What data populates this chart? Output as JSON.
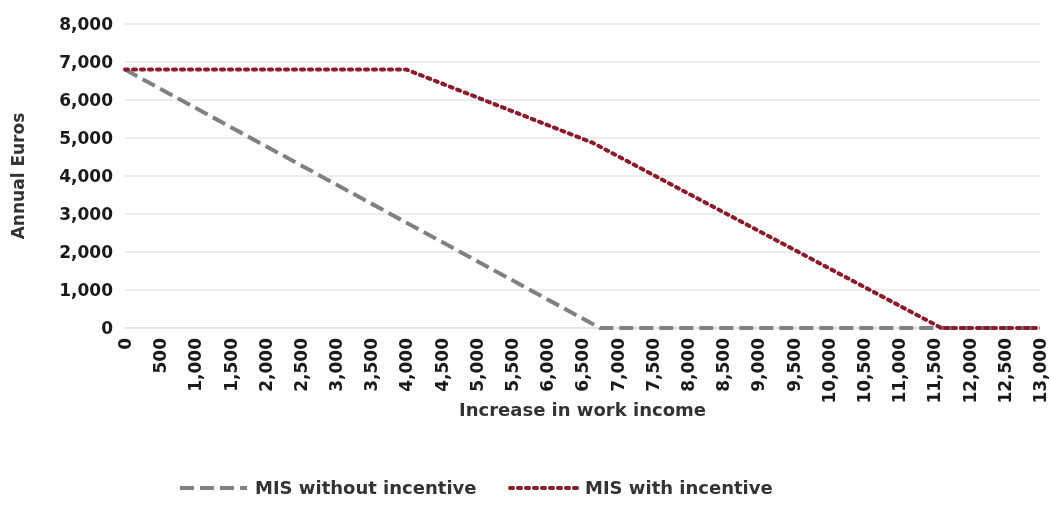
{
  "chart_data": {
    "type": "line",
    "xlabel": "Increase in work income",
    "ylabel": "Annual Euros",
    "xlim": [
      0,
      13000
    ],
    "xticks": [
      {
        "value": 0,
        "label": "0"
      },
      {
        "value": 500,
        "label": "500"
      },
      {
        "value": 1000,
        "label": "1,000"
      },
      {
        "value": 1500,
        "label": "1,500"
      },
      {
        "value": 2000,
        "label": "2,000"
      },
      {
        "value": 2500,
        "label": "2,500"
      },
      {
        "value": 3000,
        "label": "3,000"
      },
      {
        "value": 3500,
        "label": "3,500"
      },
      {
        "value": 4000,
        "label": "4,000"
      },
      {
        "value": 4500,
        "label": "4,500"
      },
      {
        "value": 5000,
        "label": "5,000"
      },
      {
        "value": 5500,
        "label": "5,500"
      },
      {
        "value": 6000,
        "label": "6,000"
      },
      {
        "value": 6500,
        "label": "6,500"
      },
      {
        "value": 7000,
        "label": "7,000"
      },
      {
        "value": 7500,
        "label": "7,500"
      },
      {
        "value": 8000,
        "label": "8,000"
      },
      {
        "value": 8500,
        "label": "8,500"
      },
      {
        "value": 9000,
        "label": "9,000"
      },
      {
        "value": 9500,
        "label": "9,500"
      },
      {
        "value": 10000,
        "label": "10,000"
      },
      {
        "value": 10500,
        "label": "10,500"
      },
      {
        "value": 11000,
        "label": "11,000"
      },
      {
        "value": 11500,
        "label": "11,500"
      },
      {
        "value": 12000,
        "label": "12,000"
      },
      {
        "value": 12500,
        "label": "12,500"
      },
      {
        "value": 13000,
        "label": "13,000"
      }
    ],
    "ylim": [
      0,
      8000
    ],
    "yticks": [
      {
        "value": 0,
        "label": "0"
      },
      {
        "value": 1000,
        "label": "1,000"
      },
      {
        "value": 2000,
        "label": "2,000"
      },
      {
        "value": 3000,
        "label": "3,000"
      },
      {
        "value": 4000,
        "label": "4,000"
      },
      {
        "value": 5000,
        "label": "5,000"
      },
      {
        "value": 6000,
        "label": "6,000"
      },
      {
        "value": 7000,
        "label": "7,000"
      },
      {
        "value": 8000,
        "label": "8,000"
      }
    ],
    "grid": "y",
    "legend": "bottom",
    "marker": "none",
    "series": [
      {
        "name": "MIS without incentive",
        "color": "#808080",
        "line_style": "dashed",
        "x": [
          0,
          6750,
          13000
        ],
        "values": [
          6800,
          0,
          0
        ]
      },
      {
        "name": "MIS with incentive",
        "color": "#8b1a2b",
        "line_style": "dotted",
        "x": [
          0,
          4000,
          6650,
          11600,
          13000
        ],
        "values": [
          6800,
          6800,
          4870,
          0,
          0
        ]
      }
    ]
  }
}
